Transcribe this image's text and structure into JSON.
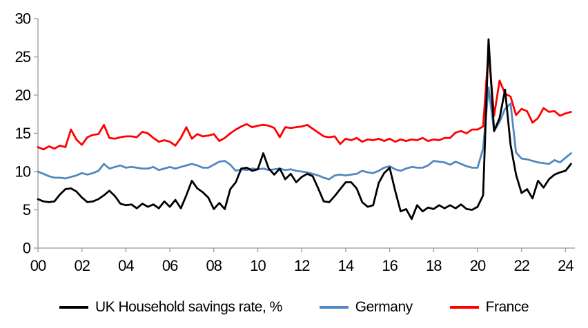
{
  "chart_data": {
    "type": "line",
    "title": "",
    "xlabel": "",
    "ylabel": "",
    "grid": false,
    "legend_position": "bottom",
    "axis_color": "#a6a6a6",
    "x_start": 2000,
    "x_step": 0.25,
    "x_axis": {
      "tick_years": [
        2000,
        2002,
        2004,
        2006,
        2008,
        2010,
        2012,
        2014,
        2016,
        2018,
        2020,
        2022,
        2024
      ],
      "tick_labels": [
        "00",
        "02",
        "04",
        "06",
        "08",
        "10",
        "12",
        "14",
        "16",
        "18",
        "20",
        "22",
        "24"
      ]
    },
    "y_axis": {
      "min": 0,
      "max": 30,
      "tick_values": [
        0,
        5,
        10,
        15,
        20,
        25,
        30
      ],
      "tick_labels": [
        "0",
        "5",
        "10",
        "15",
        "20",
        "25",
        "30"
      ]
    },
    "series": [
      {
        "name": "UK Household savings rate, %",
        "color": "#000000",
        "values": [
          6.4,
          6.1,
          6.0,
          6.1,
          7.0,
          7.7,
          7.8,
          7.4,
          6.6,
          6.0,
          6.1,
          6.4,
          6.9,
          7.5,
          6.8,
          5.8,
          5.6,
          5.7,
          5.2,
          5.8,
          5.4,
          5.7,
          5.2,
          6.1,
          5.4,
          6.3,
          5.2,
          6.9,
          8.8,
          7.8,
          7.3,
          6.6,
          5.1,
          5.9,
          5.1,
          7.7,
          8.6,
          10.4,
          10.5,
          10.1,
          10.3,
          12.4,
          10.4,
          9.6,
          10.4,
          9.0,
          9.7,
          8.6,
          9.3,
          9.7,
          9.4,
          7.8,
          6.1,
          6.0,
          6.8,
          7.7,
          8.6,
          8.6,
          7.8,
          6.0,
          5.4,
          5.6,
          8.5,
          9.8,
          10.5,
          7.5,
          4.8,
          5.1,
          3.8,
          5.6,
          4.8,
          5.3,
          5.1,
          5.6,
          5.2,
          5.6,
          5.2,
          5.7,
          5.1,
          5.0,
          5.4,
          6.9,
          27.3,
          15.3,
          17.0,
          20.7,
          13.5,
          9.6,
          7.2,
          7.7,
          6.5,
          8.8,
          7.9,
          9.0,
          9.6,
          9.9,
          10.1,
          11.0
        ]
      },
      {
        "name": "Germany",
        "color": "#5288c1",
        "values": [
          10.0,
          9.7,
          9.4,
          9.2,
          9.2,
          9.1,
          9.3,
          9.5,
          9.8,
          9.6,
          9.8,
          10.1,
          11.0,
          10.4,
          10.6,
          10.8,
          10.5,
          10.6,
          10.5,
          10.4,
          10.4,
          10.6,
          10.2,
          10.4,
          10.6,
          10.4,
          10.6,
          10.8,
          11.0,
          10.8,
          10.5,
          10.5,
          10.9,
          11.3,
          11.4,
          10.9,
          10.1,
          10.3,
          10.2,
          10.4,
          10.3,
          10.4,
          10.2,
          10.3,
          10.4,
          10.2,
          10.3,
          10.1,
          10.0,
          9.9,
          9.7,
          9.5,
          9.2,
          9.0,
          9.5,
          9.6,
          9.5,
          9.6,
          9.7,
          10.1,
          9.9,
          9.8,
          10.1,
          10.5,
          10.7,
          10.3,
          10.1,
          10.4,
          10.6,
          10.5,
          10.5,
          10.8,
          11.4,
          11.3,
          11.2,
          10.9,
          11.3,
          11.0,
          10.7,
          10.5,
          10.5,
          13.0,
          21.0,
          15.3,
          16.5,
          18.2,
          18.9,
          12.5,
          11.7,
          11.6,
          11.4,
          11.2,
          11.1,
          11.0,
          11.5,
          11.2,
          11.8,
          12.4
        ]
      },
      {
        "name": "France",
        "color": "#ff0000",
        "values": [
          13.2,
          12.9,
          13.3,
          13.0,
          13.4,
          13.2,
          15.5,
          14.2,
          13.5,
          14.5,
          14.8,
          14.9,
          16.1,
          14.4,
          14.3,
          14.5,
          14.6,
          14.6,
          14.5,
          15.2,
          15.0,
          14.4,
          13.9,
          14.1,
          13.9,
          13.4,
          14.4,
          15.8,
          14.3,
          14.9,
          14.6,
          14.7,
          14.9,
          14.0,
          14.4,
          15.0,
          15.5,
          15.9,
          16.2,
          15.8,
          16.0,
          16.1,
          16.0,
          15.7,
          14.5,
          15.8,
          15.7,
          15.8,
          15.9,
          16.1,
          15.6,
          15.1,
          14.6,
          14.5,
          14.6,
          13.6,
          14.3,
          14.1,
          14.4,
          13.9,
          14.2,
          14.1,
          14.3,
          14.0,
          14.3,
          13.9,
          14.2,
          14.0,
          14.2,
          14.1,
          14.4,
          14.0,
          14.2,
          14.1,
          14.4,
          14.4,
          15.1,
          15.3,
          15.0,
          15.5,
          15.5,
          15.9,
          25.8,
          17.3,
          21.9,
          20.2,
          19.8,
          17.4,
          18.2,
          17.9,
          16.4,
          17.0,
          18.3,
          17.8,
          17.9,
          17.3,
          17.6,
          17.8
        ]
      }
    ]
  }
}
